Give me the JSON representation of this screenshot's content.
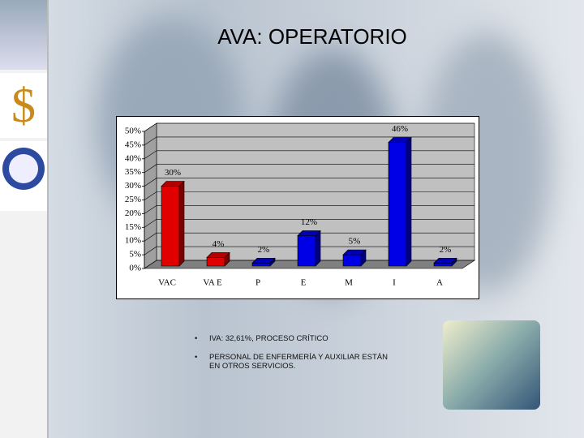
{
  "chart_data": {
    "type": "bar3d",
    "title": "AVA: OPERATORIO",
    "categories": [
      "VAC",
      "VA E",
      "P",
      "E",
      "M",
      "I",
      "A"
    ],
    "values": [
      30,
      4,
      2,
      12,
      5,
      46,
      2
    ],
    "value_labels": [
      "30%",
      "4%",
      "2%",
      "12%",
      "5%",
      "46%",
      "2%"
    ],
    "colors": [
      "#e00000",
      "#e00000",
      "#0000e6",
      "#0000e6",
      "#0000e6",
      "#0000e6",
      "#0000e6"
    ],
    "ylim": [
      0,
      50
    ],
    "yticks": [
      {
        "value": 0,
        "label": "0%"
      },
      {
        "value": 5,
        "label": "5%"
      },
      {
        "value": 10,
        "label": "10%"
      },
      {
        "value": 15,
        "label": "15%"
      },
      {
        "value": 20,
        "label": "20%"
      },
      {
        "value": 25,
        "label": "25%"
      },
      {
        "value": 30,
        "label": "30%"
      },
      {
        "value": 35,
        "label": "35%"
      },
      {
        "value": 40,
        "label": "40%"
      },
      {
        "value": 45,
        "label": "45%"
      },
      {
        "value": 50,
        "label": "50%"
      }
    ],
    "grid": true
  },
  "bullets": [
    "IVA: 32,61%, PROCESO CRÍTICO",
    "PERSONAL DE ENFERMERÍA Y AUXILIAR ESTÁN EN OTROS SERVICIOS."
  ]
}
